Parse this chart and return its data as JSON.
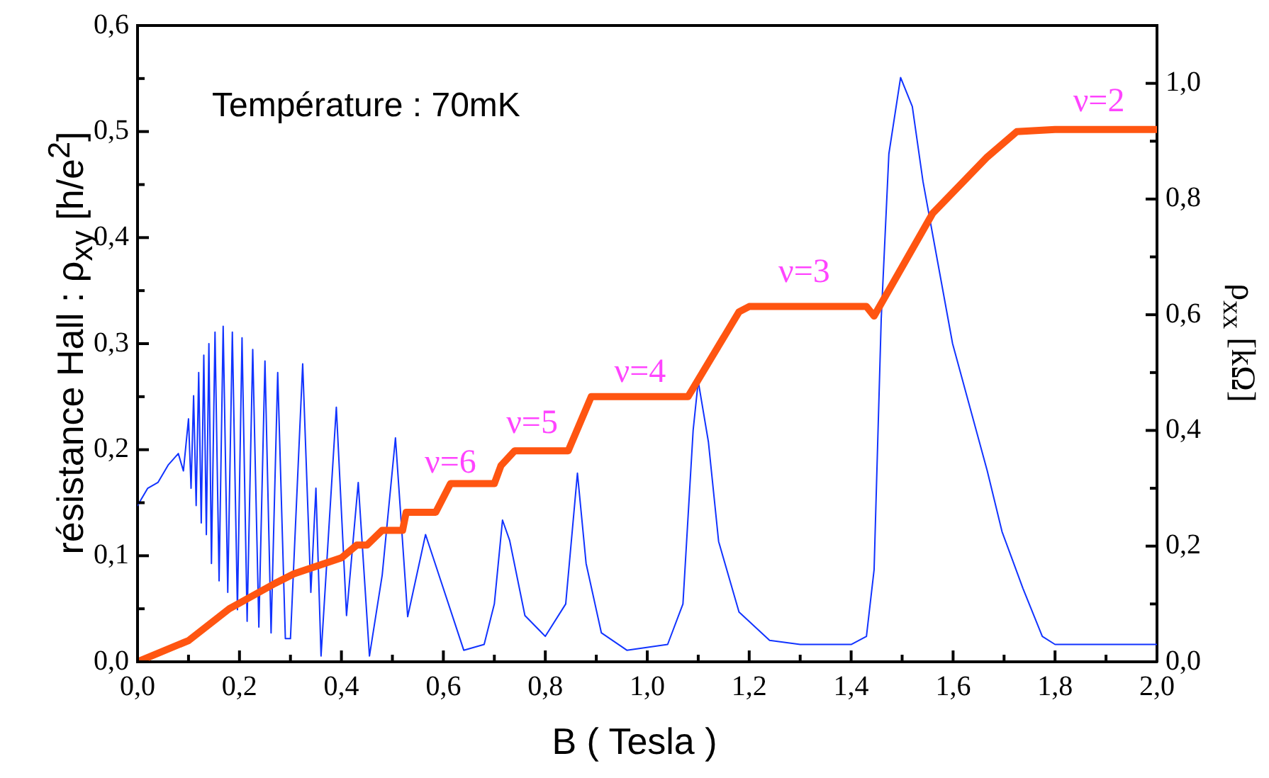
{
  "chart_data": {
    "type": "line",
    "xlabel": "B ( Tesla )",
    "ylabel": "résistance Hall : ρ$_{xy}$ [h/e$^{2}$]",
    "y2label": "ρ$_{xx}$ [kΩ]",
    "xlim": [
      0,
      2
    ],
    "xticks": [
      {
        "value": 0,
        "label": "0,0"
      },
      {
        "value": 0.1,
        "label": null
      },
      {
        "value": 0.2,
        "label": "0,2"
      },
      {
        "value": 0.3,
        "label": null
      },
      {
        "value": 0.4,
        "label": "0,4"
      },
      {
        "value": 0.5,
        "label": null
      },
      {
        "value": 0.6,
        "label": "0,6"
      },
      {
        "value": 0.7,
        "label": null
      },
      {
        "value": 0.8,
        "label": "0,8"
      },
      {
        "value": 0.9,
        "label": null
      },
      {
        "value": 1.0,
        "label": "1,0"
      },
      {
        "value": 1.1,
        "label": null
      },
      {
        "value": 1.2,
        "label": "1,2"
      },
      {
        "value": 1.3,
        "label": null
      },
      {
        "value": 1.4,
        "label": "1,4"
      },
      {
        "value": 1.5,
        "label": null
      },
      {
        "value": 1.6,
        "label": "1,6"
      },
      {
        "value": 1.7,
        "label": null
      },
      {
        "value": 1.8,
        "label": "1,8"
      },
      {
        "value": 1.9,
        "label": null
      },
      {
        "value": 2.0,
        "label": "2,0"
      }
    ],
    "ylim": [
      0,
      0.6
    ],
    "yticks": [
      {
        "value": 0,
        "label": "0,0"
      },
      {
        "value": 0.05,
        "label": null
      },
      {
        "value": 0.1,
        "label": "0,1"
      },
      {
        "value": 0.15,
        "label": null
      },
      {
        "value": 0.2,
        "label": "0,2"
      },
      {
        "value": 0.25,
        "label": null
      },
      {
        "value": 0.3,
        "label": "0,3"
      },
      {
        "value": 0.35,
        "label": null
      },
      {
        "value": 0.4,
        "label": "0,4"
      },
      {
        "value": 0.45,
        "label": null
      },
      {
        "value": 0.5,
        "label": "0,5"
      },
      {
        "value": 0.55,
        "label": null
      },
      {
        "value": 0.6,
        "label": "0,6"
      }
    ],
    "y2lim": [
      0,
      1.1
    ],
    "y2ticks": [
      {
        "value": 0,
        "label": "0,0"
      },
      {
        "value": 0.1,
        "label": null
      },
      {
        "value": 0.2,
        "label": "0,2"
      },
      {
        "value": 0.3,
        "label": null
      },
      {
        "value": 0.4,
        "label": "0,4"
      },
      {
        "value": 0.5,
        "label": null
      },
      {
        "value": 0.6,
        "label": "0,6"
      },
      {
        "value": 0.7,
        "label": null
      },
      {
        "value": 0.8,
        "label": "0,8"
      },
      {
        "value": 0.9,
        "label": null
      },
      {
        "value": 1.0,
        "label": "1,0"
      }
    ],
    "series": [
      {
        "axis": "y",
        "color": "#ff5511",
        "x": [
          0,
          0.1,
          0.18,
          0.27,
          0.307,
          0.4,
          0.43,
          0.45,
          0.48,
          0.52,
          0.527,
          0.585,
          0.614,
          0.7,
          0.713,
          0.74,
          0.845,
          0.89,
          1.08,
          1.18,
          1.2,
          1.43,
          1.445,
          1.56,
          1.667,
          1.725,
          1.8,
          2.0
        ],
        "values": [
          0,
          0.02,
          0.05,
          0.074,
          0.083,
          0.098,
          0.11,
          0.11,
          0.124,
          0.124,
          0.141,
          0.141,
          0.168,
          0.168,
          0.185,
          0.199,
          0.199,
          0.25,
          0.25,
          0.33,
          0.335,
          0.335,
          0.326,
          0.423,
          0.476,
          0.5,
          0.502,
          0.502
        ]
      },
      {
        "axis": "y2",
        "color": "#1133ff",
        "x": [
          0,
          0.02,
          0.04,
          0.06,
          0.08,
          0.09,
          0.1,
          0.105,
          0.11,
          0.115,
          0.12,
          0.125,
          0.13,
          0.135,
          0.14,
          0.145,
          0.152,
          0.16,
          0.168,
          0.177,
          0.186,
          0.196,
          0.205,
          0.215,
          0.226,
          0.238,
          0.25,
          0.262,
          0.275,
          0.29,
          0.3,
          0.324,
          0.34,
          0.35,
          0.36,
          0.39,
          0.41,
          0.433,
          0.455,
          0.48,
          0.506,
          0.53,
          0.565,
          0.58,
          0.64,
          0.68,
          0.7,
          0.716,
          0.73,
          0.76,
          0.8,
          0.84,
          0.863,
          0.88,
          0.91,
          0.96,
          1.04,
          1.07,
          1.09,
          1.1,
          1.12,
          1.14,
          1.18,
          1.24,
          1.3,
          1.4,
          1.43,
          1.445,
          1.459,
          1.474,
          1.497,
          1.52,
          1.541,
          1.57,
          1.599,
          1.629,
          1.667,
          1.696,
          1.737,
          1.775,
          1.8,
          1.9,
          2.0
        ],
        "values": [
          0.27,
          0.3,
          0.31,
          0.34,
          0.36,
          0.33,
          0.42,
          0.3,
          0.46,
          0.27,
          0.5,
          0.24,
          0.53,
          0.22,
          0.55,
          0.17,
          0.57,
          0.14,
          0.58,
          0.12,
          0.57,
          0.09,
          0.56,
          0.07,
          0.54,
          0.06,
          0.52,
          0.05,
          0.5,
          0.04,
          0.04,
          0.515,
          0.12,
          0.3,
          0.01,
          0.44,
          0.08,
          0.31,
          0.01,
          0.15,
          0.387,
          0.078,
          0.22,
          0.18,
          0.02,
          0.03,
          0.1,
          0.245,
          0.21,
          0.08,
          0.044,
          0.1,
          0.326,
          0.17,
          0.05,
          0.02,
          0.03,
          0.1,
          0.4,
          0.485,
          0.38,
          0.208,
          0.086,
          0.037,
          0.03,
          0.03,
          0.044,
          0.159,
          0.593,
          0.878,
          1.01,
          0.96,
          0.83,
          0.69,
          0.55,
          0.453,
          0.33,
          0.225,
          0.127,
          0.044,
          0.03,
          0.03,
          0.03
        ]
      }
    ],
    "annotations": [
      "Température : 70mK",
      "ν=6",
      "ν=5",
      "ν=4",
      "ν=3",
      "ν=2"
    ]
  }
}
